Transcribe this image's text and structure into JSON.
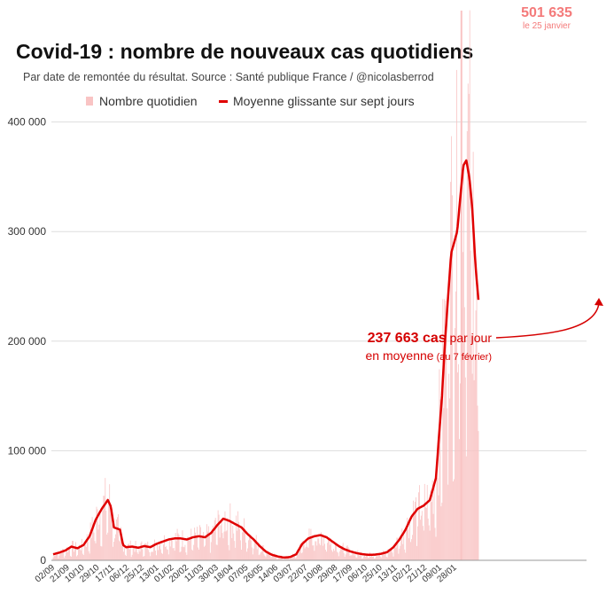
{
  "chart_data": {
    "type": "bar+line",
    "title": "Covid-19 : nombre de nouveaux cas quotidiens",
    "subtitle": "Par date de remontée du résultat. Source : Santé publique France / @nicolasberrod",
    "legend": {
      "bars": "Nombre quotidien",
      "line": "Moyenne glissante sur sept jours",
      "placement": "top"
    },
    "colors": {
      "bars": "#f9c4c4",
      "line": "#e00000",
      "annotation": "#d50000",
      "peak": "#f47a7a"
    },
    "ylim": [
      0,
      500000
    ],
    "yticks": [
      {
        "value": 0,
        "label": "0"
      },
      {
        "value": 100000,
        "label": "100 000"
      },
      {
        "value": 200000,
        "label": "200 000"
      },
      {
        "value": 300000,
        "label": "300 000"
      },
      {
        "value": 400000,
        "label": "400 000"
      }
    ],
    "x_range_weeks": [
      0,
      87.5
    ],
    "x_ticks": [
      "02/09",
      "21/09",
      "10/10",
      "29/10",
      "17/11",
      "06/12",
      "25/12",
      "13/01",
      "01/02",
      "20/02",
      "11/03",
      "30/03",
      "18/04",
      "07/05",
      "26/05",
      "14/06",
      "03/07",
      "22/07",
      "10/08",
      "29/08",
      "17/09",
      "06/10",
      "25/10",
      "13/11",
      "02/12",
      "21/12",
      "09/01",
      "28/01"
    ],
    "moving_average_weekly": [
      [
        0,
        5500
      ],
      [
        1,
        7000
      ],
      [
        2,
        9000
      ],
      [
        3,
        12500
      ],
      [
        4,
        11000
      ],
      [
        5,
        14000
      ],
      [
        6,
        22000
      ],
      [
        7,
        37000
      ],
      [
        8,
        47000
      ],
      [
        9,
        55000
      ],
      [
        9.5,
        49000
      ],
      [
        10,
        30000
      ],
      [
        11,
        28000
      ],
      [
        11.5,
        14000
      ],
      [
        12,
        12000
      ],
      [
        13,
        12500
      ],
      [
        14,
        11500
      ],
      [
        15,
        13000
      ],
      [
        16,
        12000
      ],
      [
        17,
        15000
      ],
      [
        18,
        17000
      ],
      [
        19,
        19000
      ],
      [
        20,
        20000
      ],
      [
        21,
        20000
      ],
      [
        22,
        19000
      ],
      [
        23,
        21000
      ],
      [
        24,
        22000
      ],
      [
        25,
        21000
      ],
      [
        26,
        25000
      ],
      [
        27,
        32000
      ],
      [
        28,
        38000
      ],
      [
        29,
        36000
      ],
      [
        30,
        33000
      ],
      [
        31,
        30000
      ],
      [
        32,
        24000
      ],
      [
        33,
        19000
      ],
      [
        34,
        13000
      ],
      [
        35,
        8000
      ],
      [
        36,
        5000
      ],
      [
        37,
        3500
      ],
      [
        38,
        2500
      ],
      [
        39,
        3000
      ],
      [
        40,
        5500
      ],
      [
        41,
        15000
      ],
      [
        42,
        20000
      ],
      [
        43,
        22000
      ],
      [
        44,
        23000
      ],
      [
        45,
        21000
      ],
      [
        46,
        17000
      ],
      [
        47,
        13000
      ],
      [
        48,
        10000
      ],
      [
        49,
        8000
      ],
      [
        50,
        6500
      ],
      [
        51,
        5500
      ],
      [
        52,
        5000
      ],
      [
        53,
        5200
      ],
      [
        54,
        6000
      ],
      [
        55,
        7500
      ],
      [
        56,
        12000
      ],
      [
        57,
        19000
      ],
      [
        58,
        28000
      ],
      [
        59,
        40000
      ],
      [
        60,
        47000
      ],
      [
        61,
        50000
      ],
      [
        62,
        55000
      ],
      [
        63,
        75000
      ],
      [
        64,
        150000
      ],
      [
        64.5,
        200000
      ],
      [
        65,
        240000
      ],
      [
        65.5,
        280000
      ],
      [
        66,
        290000
      ],
      [
        66.5,
        300000
      ],
      [
        67,
        330000
      ],
      [
        67.5,
        360000
      ],
      [
        68,
        365000
      ],
      [
        68.5,
        350000
      ],
      [
        69,
        320000
      ],
      [
        69.5,
        270000
      ],
      [
        70,
        237663
      ]
    ],
    "peak": {
      "value_label": "501 635",
      "date_label": "le 25 janvier",
      "value": 501635
    },
    "annotation": {
      "value_label": "237 663 cas",
      "suffix": " par jour",
      "line2": "en moyenne",
      "line2_small": " (au 7 février)",
      "value": 237663
    }
  }
}
